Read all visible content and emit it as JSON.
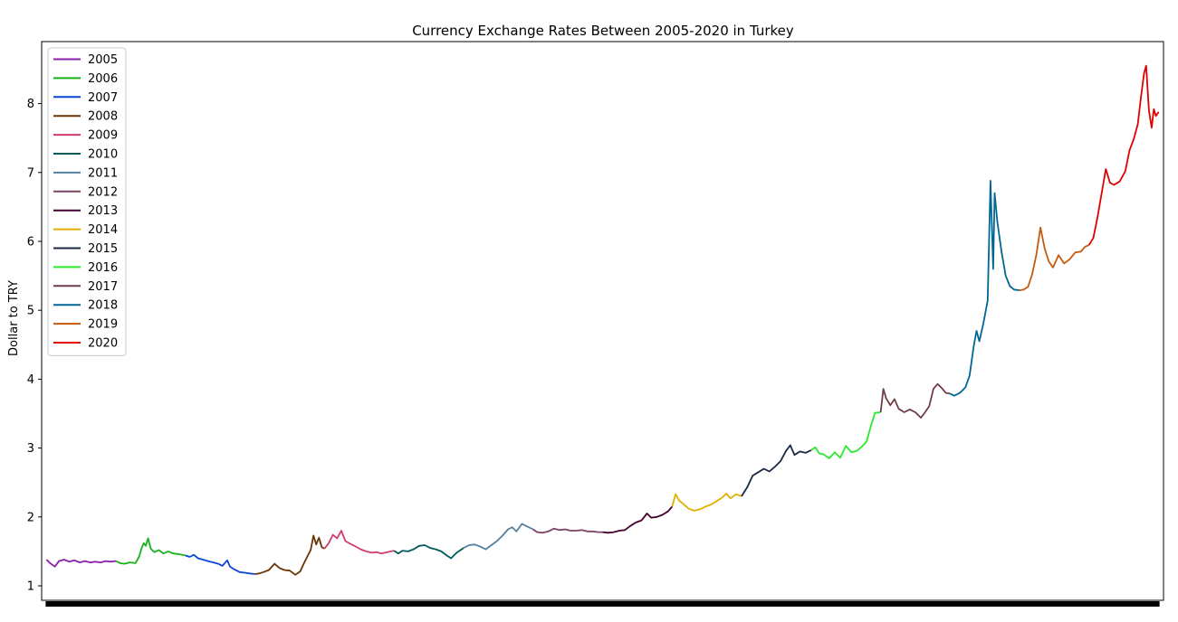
{
  "chart_data": {
    "type": "line",
    "title": "Currency Exchange Rates Between 2005-2020 in Turkey",
    "xlabel": "",
    "ylabel": "Dollar to TRY",
    "xlim": [
      2004.93,
      2021.07
    ],
    "ylim": [
      0.79,
      8.9
    ],
    "yticks": [
      1,
      2,
      3,
      4,
      5,
      6,
      7,
      8
    ],
    "grid": false,
    "legend_position": "top-left",
    "series": [
      {
        "name": "2005",
        "color": "#8b1fa8",
        "points": [
          [
            2005.0,
            1.38
          ],
          [
            2005.05,
            1.33
          ],
          [
            2005.12,
            1.28
          ],
          [
            2005.18,
            1.36
          ],
          [
            2005.25,
            1.38
          ],
          [
            2005.33,
            1.35
          ],
          [
            2005.4,
            1.37
          ],
          [
            2005.48,
            1.34
          ],
          [
            2005.55,
            1.36
          ],
          [
            2005.63,
            1.34
          ],
          [
            2005.7,
            1.35
          ],
          [
            2005.78,
            1.34
          ],
          [
            2005.85,
            1.36
          ],
          [
            2005.92,
            1.35
          ],
          [
            2006.0,
            1.36
          ]
        ]
      },
      {
        "name": "2006",
        "color": "#17b219",
        "points": [
          [
            2006.0,
            1.36
          ],
          [
            2006.06,
            1.33
          ],
          [
            2006.12,
            1.32
          ],
          [
            2006.2,
            1.34
          ],
          [
            2006.28,
            1.33
          ],
          [
            2006.33,
            1.42
          ],
          [
            2006.37,
            1.55
          ],
          [
            2006.4,
            1.62
          ],
          [
            2006.43,
            1.58
          ],
          [
            2006.46,
            1.69
          ],
          [
            2006.5,
            1.54
          ],
          [
            2006.55,
            1.49
          ],
          [
            2006.62,
            1.52
          ],
          [
            2006.68,
            1.47
          ],
          [
            2006.75,
            1.5
          ],
          [
            2006.82,
            1.47
          ],
          [
            2006.9,
            1.46
          ],
          [
            2007.0,
            1.44
          ]
        ]
      },
      {
        "name": "2007",
        "color": "#0a45d6",
        "points": [
          [
            2007.0,
            1.44
          ],
          [
            2007.06,
            1.42
          ],
          [
            2007.12,
            1.45
          ],
          [
            2007.18,
            1.4
          ],
          [
            2007.25,
            1.38
          ],
          [
            2007.32,
            1.36
          ],
          [
            2007.4,
            1.34
          ],
          [
            2007.47,
            1.32
          ],
          [
            2007.53,
            1.29
          ],
          [
            2007.6,
            1.37
          ],
          [
            2007.64,
            1.28
          ],
          [
            2007.7,
            1.24
          ],
          [
            2007.78,
            1.2
          ],
          [
            2007.85,
            1.19
          ],
          [
            2007.92,
            1.18
          ],
          [
            2008.0,
            1.17
          ]
        ]
      },
      {
        "name": "2008",
        "color": "#6b3403",
        "points": [
          [
            2008.0,
            1.17
          ],
          [
            2008.06,
            1.18
          ],
          [
            2008.12,
            1.2
          ],
          [
            2008.2,
            1.23
          ],
          [
            2008.28,
            1.32
          ],
          [
            2008.35,
            1.26
          ],
          [
            2008.42,
            1.23
          ],
          [
            2008.5,
            1.22
          ],
          [
            2008.58,
            1.16
          ],
          [
            2008.65,
            1.21
          ],
          [
            2008.7,
            1.32
          ],
          [
            2008.75,
            1.42
          ],
          [
            2008.8,
            1.52
          ],
          [
            2008.84,
            1.73
          ],
          [
            2008.88,
            1.6
          ],
          [
            2008.92,
            1.7
          ],
          [
            2008.96,
            1.56
          ],
          [
            2009.0,
            1.54
          ]
        ]
      },
      {
        "name": "2009",
        "color": "#d23b6a",
        "points": [
          [
            2009.0,
            1.54
          ],
          [
            2009.06,
            1.62
          ],
          [
            2009.12,
            1.74
          ],
          [
            2009.18,
            1.69
          ],
          [
            2009.24,
            1.8
          ],
          [
            2009.3,
            1.65
          ],
          [
            2009.37,
            1.61
          ],
          [
            2009.45,
            1.57
          ],
          [
            2009.52,
            1.53
          ],
          [
            2009.6,
            1.5
          ],
          [
            2009.68,
            1.48
          ],
          [
            2009.75,
            1.49
          ],
          [
            2009.82,
            1.47
          ],
          [
            2009.9,
            1.49
          ],
          [
            2010.0,
            1.51
          ]
        ]
      },
      {
        "name": "2010",
        "color": "#005a5a",
        "points": [
          [
            2010.0,
            1.51
          ],
          [
            2010.06,
            1.47
          ],
          [
            2010.12,
            1.51
          ],
          [
            2010.2,
            1.5
          ],
          [
            2010.28,
            1.53
          ],
          [
            2010.36,
            1.58
          ],
          [
            2010.44,
            1.59
          ],
          [
            2010.52,
            1.55
          ],
          [
            2010.6,
            1.53
          ],
          [
            2010.68,
            1.5
          ],
          [
            2010.76,
            1.44
          ],
          [
            2010.82,
            1.4
          ],
          [
            2010.9,
            1.48
          ],
          [
            2011.0,
            1.55
          ]
        ]
      },
      {
        "name": "2011",
        "color": "#5580a0",
        "points": [
          [
            2011.0,
            1.55
          ],
          [
            2011.08,
            1.59
          ],
          [
            2011.16,
            1.6
          ],
          [
            2011.24,
            1.57
          ],
          [
            2011.32,
            1.53
          ],
          [
            2011.4,
            1.59
          ],
          [
            2011.48,
            1.65
          ],
          [
            2011.56,
            1.73
          ],
          [
            2011.64,
            1.82
          ],
          [
            2011.7,
            1.85
          ],
          [
            2011.76,
            1.79
          ],
          [
            2011.84,
            1.9
          ],
          [
            2011.92,
            1.86
          ],
          [
            2012.0,
            1.82
          ]
        ]
      },
      {
        "name": "2012",
        "color": "#7d4360",
        "points": [
          [
            2012.0,
            1.82
          ],
          [
            2012.06,
            1.78
          ],
          [
            2012.14,
            1.77
          ],
          [
            2012.22,
            1.79
          ],
          [
            2012.3,
            1.83
          ],
          [
            2012.38,
            1.81
          ],
          [
            2012.46,
            1.82
          ],
          [
            2012.54,
            1.8
          ],
          [
            2012.62,
            1.8
          ],
          [
            2012.7,
            1.81
          ],
          [
            2012.78,
            1.79
          ],
          [
            2012.86,
            1.79
          ],
          [
            2012.94,
            1.78
          ],
          [
            2013.0,
            1.78
          ]
        ]
      },
      {
        "name": "2013",
        "color": "#45002f",
        "points": [
          [
            2013.0,
            1.78
          ],
          [
            2013.08,
            1.77
          ],
          [
            2013.16,
            1.78
          ],
          [
            2013.24,
            1.8
          ],
          [
            2013.32,
            1.81
          ],
          [
            2013.4,
            1.87
          ],
          [
            2013.48,
            1.92
          ],
          [
            2013.56,
            1.95
          ],
          [
            2013.64,
            2.05
          ],
          [
            2013.7,
            1.99
          ],
          [
            2013.78,
            2.0
          ],
          [
            2013.86,
            2.03
          ],
          [
            2013.94,
            2.08
          ],
          [
            2014.0,
            2.15
          ]
        ]
      },
      {
        "name": "2014",
        "color": "#e0b000",
        "points": [
          [
            2014.0,
            2.15
          ],
          [
            2014.05,
            2.33
          ],
          [
            2014.1,
            2.24
          ],
          [
            2014.16,
            2.19
          ],
          [
            2014.24,
            2.12
          ],
          [
            2014.32,
            2.09
          ],
          [
            2014.4,
            2.11
          ],
          [
            2014.48,
            2.15
          ],
          [
            2014.56,
            2.18
          ],
          [
            2014.64,
            2.23
          ],
          [
            2014.72,
            2.28
          ],
          [
            2014.78,
            2.34
          ],
          [
            2014.84,
            2.27
          ],
          [
            2014.92,
            2.33
          ],
          [
            2015.0,
            2.3
          ]
        ]
      },
      {
        "name": "2015",
        "color": "#172840",
        "points": [
          [
            2015.0,
            2.3
          ],
          [
            2015.08,
            2.43
          ],
          [
            2015.16,
            2.6
          ],
          [
            2015.24,
            2.65
          ],
          [
            2015.32,
            2.7
          ],
          [
            2015.4,
            2.66
          ],
          [
            2015.48,
            2.73
          ],
          [
            2015.56,
            2.81
          ],
          [
            2015.64,
            2.96
          ],
          [
            2015.7,
            3.04
          ],
          [
            2015.76,
            2.9
          ],
          [
            2015.84,
            2.95
          ],
          [
            2015.92,
            2.93
          ],
          [
            2016.0,
            2.97
          ]
        ]
      },
      {
        "name": "2016",
        "color": "#2ae82a",
        "points": [
          [
            2016.0,
            2.97
          ],
          [
            2016.06,
            3.01
          ],
          [
            2016.12,
            2.92
          ],
          [
            2016.18,
            2.91
          ],
          [
            2016.26,
            2.85
          ],
          [
            2016.34,
            2.94
          ],
          [
            2016.42,
            2.86
          ],
          [
            2016.5,
            3.03
          ],
          [
            2016.58,
            2.94
          ],
          [
            2016.66,
            2.96
          ],
          [
            2016.74,
            3.03
          ],
          [
            2016.8,
            3.1
          ],
          [
            2016.86,
            3.32
          ],
          [
            2016.92,
            3.51
          ],
          [
            2017.0,
            3.52
          ]
        ]
      },
      {
        "name": "2017",
        "color": "#6f3d47",
        "points": [
          [
            2017.0,
            3.52
          ],
          [
            2017.04,
            3.86
          ],
          [
            2017.08,
            3.72
          ],
          [
            2017.14,
            3.62
          ],
          [
            2017.2,
            3.71
          ],
          [
            2017.26,
            3.57
          ],
          [
            2017.34,
            3.52
          ],
          [
            2017.42,
            3.56
          ],
          [
            2017.5,
            3.52
          ],
          [
            2017.58,
            3.44
          ],
          [
            2017.64,
            3.52
          ],
          [
            2017.7,
            3.61
          ],
          [
            2017.76,
            3.86
          ],
          [
            2017.82,
            3.93
          ],
          [
            2017.88,
            3.87
          ],
          [
            2017.94,
            3.8
          ],
          [
            2018.0,
            3.79
          ]
        ]
      },
      {
        "name": "2018",
        "color": "#006795",
        "points": [
          [
            2018.0,
            3.79
          ],
          [
            2018.06,
            3.76
          ],
          [
            2018.14,
            3.8
          ],
          [
            2018.22,
            3.88
          ],
          [
            2018.28,
            4.05
          ],
          [
            2018.34,
            4.48
          ],
          [
            2018.38,
            4.7
          ],
          [
            2018.42,
            4.55
          ],
          [
            2018.48,
            4.82
          ],
          [
            2018.54,
            5.14
          ],
          [
            2018.58,
            6.88
          ],
          [
            2018.62,
            5.6
          ],
          [
            2018.64,
            6.7
          ],
          [
            2018.68,
            6.28
          ],
          [
            2018.74,
            5.85
          ],
          [
            2018.8,
            5.5
          ],
          [
            2018.86,
            5.35
          ],
          [
            2018.92,
            5.3
          ],
          [
            2019.0,
            5.29
          ]
        ]
      },
      {
        "name": "2019",
        "color": "#c55a0c",
        "points": [
          [
            2019.0,
            5.29
          ],
          [
            2019.06,
            5.3
          ],
          [
            2019.12,
            5.34
          ],
          [
            2019.18,
            5.52
          ],
          [
            2019.24,
            5.8
          ],
          [
            2019.3,
            6.2
          ],
          [
            2019.36,
            5.9
          ],
          [
            2019.42,
            5.71
          ],
          [
            2019.48,
            5.62
          ],
          [
            2019.56,
            5.8
          ],
          [
            2019.64,
            5.68
          ],
          [
            2019.72,
            5.74
          ],
          [
            2019.8,
            5.84
          ],
          [
            2019.88,
            5.85
          ],
          [
            2019.94,
            5.92
          ],
          [
            2020.0,
            5.95
          ]
        ]
      },
      {
        "name": "2020",
        "color": "#e00000",
        "points": [
          [
            2020.0,
            5.95
          ],
          [
            2020.06,
            6.05
          ],
          [
            2020.12,
            6.35
          ],
          [
            2020.18,
            6.7
          ],
          [
            2020.24,
            7.05
          ],
          [
            2020.3,
            6.85
          ],
          [
            2020.36,
            6.82
          ],
          [
            2020.44,
            6.87
          ],
          [
            2020.52,
            7.02
          ],
          [
            2020.58,
            7.32
          ],
          [
            2020.64,
            7.48
          ],
          [
            2020.7,
            7.7
          ],
          [
            2020.74,
            8.05
          ],
          [
            2020.79,
            8.44
          ],
          [
            2020.82,
            8.55
          ],
          [
            2020.86,
            7.9
          ],
          [
            2020.9,
            7.65
          ],
          [
            2020.93,
            7.92
          ],
          [
            2020.96,
            7.82
          ],
          [
            2021.0,
            7.88
          ]
        ]
      }
    ]
  }
}
